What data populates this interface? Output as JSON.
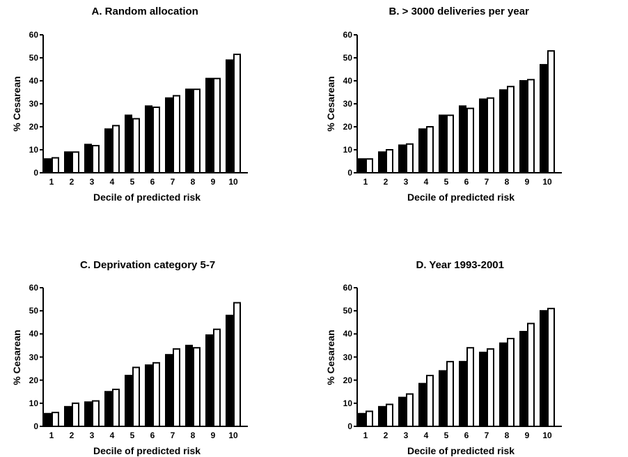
{
  "chart_data": [
    {
      "type": "bar",
      "title": "A. Random allocation",
      "xlabel": "Decile of predicted risk",
      "ylabel": "% Cesarean",
      "ylim": [
        0,
        60
      ],
      "yticks": [
        "0",
        "10",
        "20",
        "30",
        "40",
        "50",
        "60"
      ],
      "categories": [
        "1",
        "2",
        "3",
        "4",
        "5",
        "6",
        "7",
        "8",
        "9",
        "10"
      ],
      "series": [
        {
          "values": [
            6,
            9,
            12.3,
            19,
            25,
            29,
            32.5,
            36.3,
            41,
            49
          ],
          "fill": "#000000"
        },
        {
          "values": [
            6.5,
            9,
            11.8,
            20.5,
            23.5,
            28.5,
            33.5,
            36.3,
            41,
            51.5
          ],
          "fill": "#ffffff"
        }
      ]
    },
    {
      "type": "bar",
      "title": "B. > 3000 deliveries per year",
      "xlabel": "Decile of predicted risk",
      "ylabel": "% Cesarean",
      "ylim": [
        0,
        60
      ],
      "yticks": [
        "0",
        "10",
        "20",
        "30",
        "40",
        "50",
        "60"
      ],
      "categories": [
        "1",
        "2",
        "3",
        "4",
        "5",
        "6",
        "7",
        "8",
        "9",
        "10"
      ],
      "series": [
        {
          "values": [
            6,
            9,
            12,
            19,
            25,
            29,
            32,
            36,
            40,
            47
          ],
          "fill": "#000000"
        },
        {
          "values": [
            6,
            10,
            12.5,
            20,
            25,
            28,
            32.5,
            37.5,
            40.5,
            53
          ],
          "fill": "#ffffff"
        }
      ]
    },
    {
      "type": "bar",
      "title": "C. Deprivation category 5-7",
      "xlabel": "Decile of predicted risk",
      "ylabel": "% Cesarean",
      "ylim": [
        0,
        60
      ],
      "yticks": [
        "0",
        "10",
        "20",
        "30",
        "40",
        "50",
        "60"
      ],
      "categories": [
        "1",
        "2",
        "3",
        "4",
        "5",
        "6",
        "7",
        "8",
        "9",
        "10"
      ],
      "series": [
        {
          "values": [
            5.5,
            8.5,
            10.5,
            15,
            22,
            26.5,
            31,
            35,
            39.5,
            48
          ],
          "fill": "#000000"
        },
        {
          "values": [
            6,
            10,
            11,
            16,
            25.5,
            27.5,
            33.5,
            34,
            42,
            53.5
          ],
          "fill": "#ffffff"
        }
      ]
    },
    {
      "type": "bar",
      "title": "D. Year 1993-2001",
      "xlabel": "Decile of predicted risk",
      "ylabel": "% Cesarean",
      "ylim": [
        0,
        60
      ],
      "yticks": [
        "0",
        "10",
        "20",
        "30",
        "40",
        "50",
        "60"
      ],
      "categories": [
        "1",
        "2",
        "3",
        "4",
        "5",
        "6",
        "7",
        "8",
        "9",
        "10"
      ],
      "series": [
        {
          "values": [
            5.5,
            8.5,
            12.5,
            18.5,
            24,
            28,
            32,
            36,
            41,
            50
          ],
          "fill": "#000000"
        },
        {
          "values": [
            6.5,
            9.5,
            14,
            22,
            28,
            34,
            33.5,
            38,
            44.5,
            51
          ],
          "fill": "#ffffff"
        }
      ]
    }
  ]
}
